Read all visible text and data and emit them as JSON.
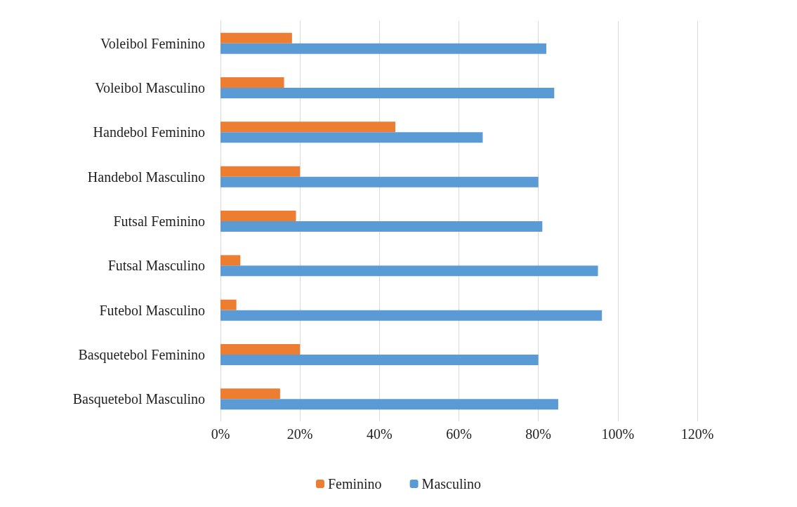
{
  "chart_data": {
    "type": "bar",
    "orientation": "horizontal",
    "categories": [
      "Voleibol Feminino",
      "Voleibol Masculino",
      "Handebol Feminino",
      "Handebol Masculino",
      "Futsal Feminino",
      "Futsal Masculino",
      "Futebol Masculino",
      "Basquetebol Feminino",
      "Basquetebol Masculino"
    ],
    "series": [
      {
        "name": "Feminino",
        "color": "#ed7d31",
        "values": [
          18,
          16,
          44,
          20,
          19,
          5,
          4,
          20,
          15
        ]
      },
      {
        "name": "Masculino",
        "color": "#5b9bd5",
        "values": [
          82,
          84,
          66,
          80,
          81,
          95,
          96,
          80,
          85
        ]
      }
    ],
    "xlim": [
      0,
      120
    ],
    "xticks": [
      {
        "value": 0,
        "label": "0%"
      },
      {
        "value": 20,
        "label": "20%"
      },
      {
        "value": 40,
        "label": "40%"
      },
      {
        "value": 60,
        "label": "60%"
      },
      {
        "value": 80,
        "label": "80%"
      },
      {
        "value": 100,
        "label": "100%"
      },
      {
        "value": 120,
        "label": "120%"
      }
    ],
    "grid": "x",
    "legend": "bottom"
  }
}
